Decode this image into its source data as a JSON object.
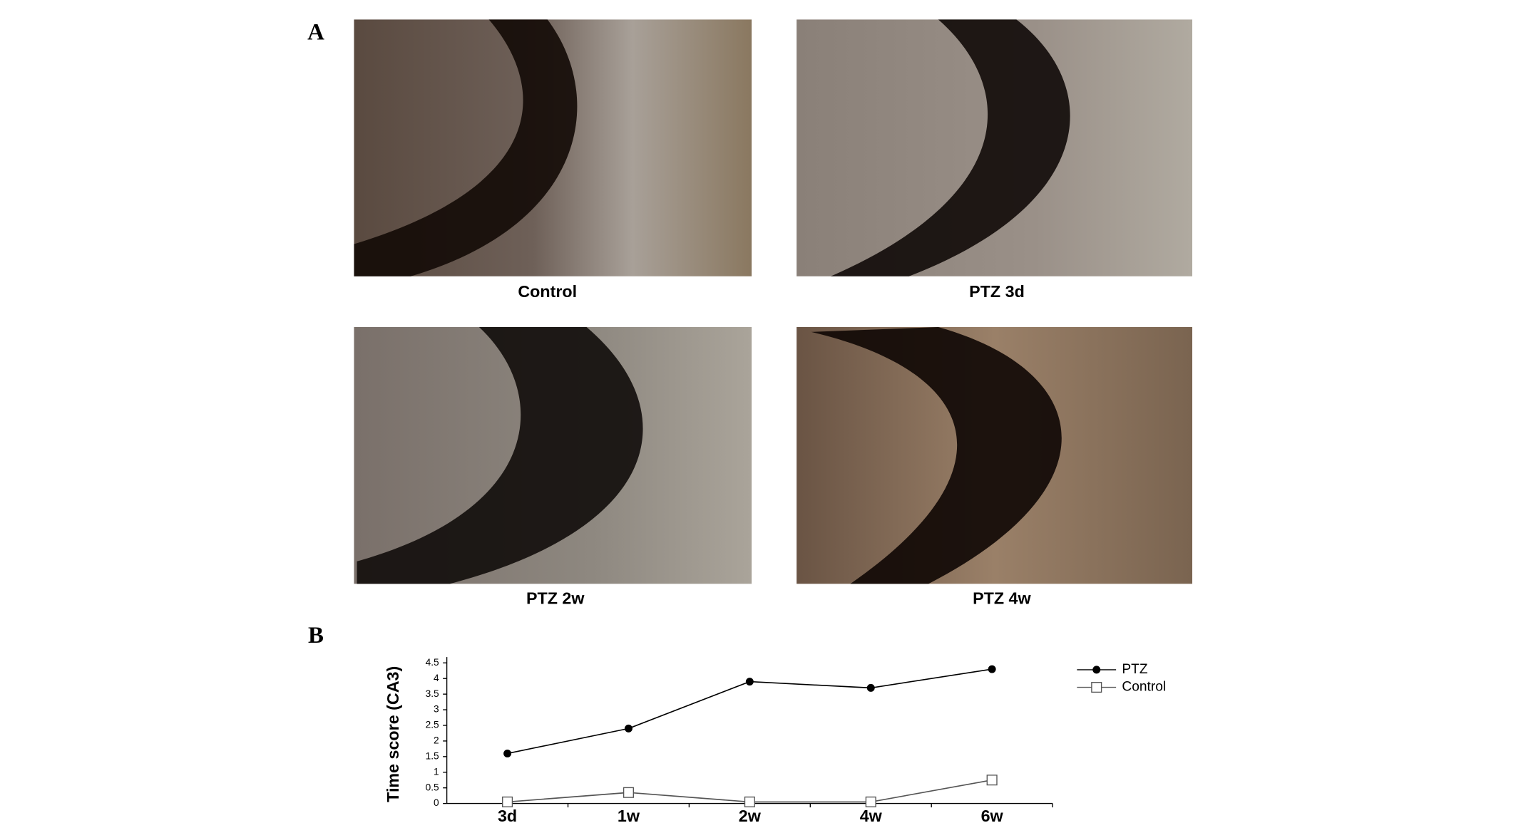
{
  "figure": {
    "label_a": "A",
    "label_b": "B",
    "captions": [
      "Control",
      "PTZ 3d",
      "PTZ 2w",
      "PTZ 4w"
    ]
  },
  "chart_data": {
    "type": "line",
    "ylabel": "Time score (CA3)",
    "categories": [
      "3d",
      "1w",
      "2w",
      "4w",
      "6w"
    ],
    "series": [
      {
        "name": "PTZ",
        "color": "#000000",
        "values": [
          1.6,
          2.4,
          3.9,
          3.7,
          4.3
        ]
      },
      {
        "name": "Control",
        "color": "#555555",
        "values": [
          0.05,
          0.35,
          0.05,
          0.05,
          0.75
        ]
      }
    ],
    "ylim": [
      0,
      4.5
    ],
    "yticks": [
      0,
      0.5,
      1,
      1.5,
      2,
      2.5,
      3,
      3.5,
      4,
      4.5
    ]
  }
}
